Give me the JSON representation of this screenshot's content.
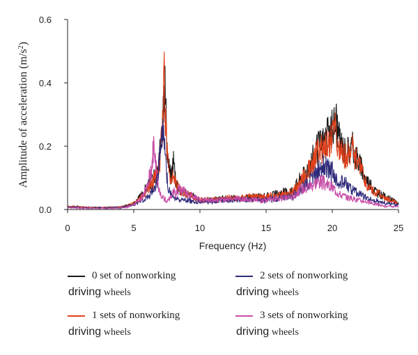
{
  "chart_data": {
    "type": "line",
    "xlabel": "Frequency (Hz)",
    "ylabel_main": "Amplitude of acceleration (m/s",
    "ylabel_sup": "2",
    "ylabel_end": ")",
    "xlim": [
      0,
      25
    ],
    "ylim": [
      0,
      0.6
    ],
    "xticks": [
      "0",
      "5",
      "10",
      "15",
      "20",
      "25"
    ],
    "yticks": [
      "0.0",
      "0.2",
      "0.4",
      "0.6"
    ],
    "grid": false,
    "legend_position": "bottom",
    "series": [
      {
        "name": "0 set of nonworking driving wheels",
        "color": "#1a1a1a",
        "x": [
          0,
          1,
          2,
          3,
          4,
          4.5,
          5,
          5.5,
          6,
          6.5,
          6.8,
          7,
          7.2,
          7.3,
          7.4,
          7.5,
          7.6,
          7.8,
          8,
          8.2,
          8.5,
          9,
          9.5,
          10,
          11,
          12,
          13,
          14,
          15,
          16,
          17,
          17.5,
          18,
          18.5,
          19,
          19.5,
          20,
          20.3,
          20.5,
          21,
          21.5,
          22,
          22.5,
          23,
          23.5,
          24,
          25
        ],
        "y": [
          0.01,
          0.008,
          0.006,
          0.006,
          0.008,
          0.012,
          0.02,
          0.04,
          0.07,
          0.1,
          0.12,
          0.18,
          0.3,
          0.45,
          0.35,
          0.22,
          0.15,
          0.1,
          0.16,
          0.09,
          0.06,
          0.05,
          0.04,
          0.03,
          0.03,
          0.035,
          0.035,
          0.04,
          0.04,
          0.05,
          0.06,
          0.09,
          0.12,
          0.16,
          0.2,
          0.22,
          0.25,
          0.285,
          0.22,
          0.18,
          0.2,
          0.15,
          0.1,
          0.07,
          0.05,
          0.04,
          0.02
        ]
      },
      {
        "name": "1 sets of nonworking driving wheels",
        "color": "#e0401a",
        "x": [
          0,
          1,
          2,
          3,
          4,
          4.5,
          5,
          5.5,
          6,
          6.5,
          6.8,
          7,
          7.2,
          7.3,
          7.4,
          7.5,
          7.6,
          7.8,
          8,
          8.2,
          8.5,
          9,
          9.5,
          10,
          11,
          12,
          13,
          14,
          15,
          16,
          17,
          17.5,
          18,
          18.5,
          19,
          19.5,
          20,
          20.3,
          20.5,
          21,
          21.5,
          22,
          22.5,
          23,
          23.5,
          24,
          25
        ],
        "y": [
          0.01,
          0.008,
          0.006,
          0.006,
          0.008,
          0.012,
          0.02,
          0.035,
          0.06,
          0.09,
          0.11,
          0.16,
          0.28,
          0.42,
          0.3,
          0.2,
          0.13,
          0.09,
          0.12,
          0.08,
          0.06,
          0.05,
          0.04,
          0.03,
          0.03,
          0.035,
          0.035,
          0.04,
          0.04,
          0.045,
          0.055,
          0.08,
          0.11,
          0.15,
          0.19,
          0.2,
          0.23,
          0.26,
          0.2,
          0.17,
          0.19,
          0.14,
          0.09,
          0.06,
          0.05,
          0.035,
          0.02
        ]
      },
      {
        "name": "2 sets of nonworking driving wheels",
        "color": "#2e2a7a",
        "x": [
          0,
          1,
          2,
          3,
          4,
          4.5,
          5,
          5.5,
          6,
          6.5,
          6.8,
          7,
          7.2,
          7.3,
          7.4,
          7.5,
          7.6,
          7.8,
          8,
          8.2,
          8.5,
          9,
          9.5,
          10,
          11,
          12,
          13,
          14,
          15,
          16,
          17,
          17.5,
          18,
          18.5,
          19,
          19.5,
          20,
          20.3,
          20.5,
          21,
          21.5,
          22,
          22.5,
          23,
          23.5,
          24,
          25
        ],
        "y": [
          0.008,
          0.006,
          0.005,
          0.005,
          0.006,
          0.01,
          0.015,
          0.025,
          0.04,
          0.06,
          0.1,
          0.2,
          0.24,
          0.2,
          0.15,
          0.1,
          0.07,
          0.05,
          0.04,
          0.035,
          0.03,
          0.03,
          0.025,
          0.025,
          0.025,
          0.03,
          0.03,
          0.03,
          0.03,
          0.035,
          0.04,
          0.06,
          0.08,
          0.1,
          0.13,
          0.14,
          0.12,
          0.1,
          0.09,
          0.08,
          0.06,
          0.05,
          0.04,
          0.03,
          0.025,
          0.02,
          0.015
        ]
      },
      {
        "name": "3 sets of nonworking driving wheels",
        "color": "#c64ca6",
        "x": [
          0,
          1,
          2,
          3,
          4,
          4.5,
          5,
          5.5,
          6,
          6.3,
          6.5,
          6.6,
          6.7,
          6.8,
          7,
          7.2,
          7.4,
          7.6,
          7.8,
          8,
          8.2,
          8.5,
          9,
          9.5,
          10,
          11,
          12,
          13,
          14,
          15,
          16,
          17,
          17.5,
          18,
          18.5,
          19,
          19.5,
          20,
          20.3,
          20.5,
          21,
          21.5,
          22,
          22.5,
          23,
          23.5,
          24,
          25
        ],
        "y": [
          0.006,
          0.005,
          0.004,
          0.004,
          0.005,
          0.008,
          0.015,
          0.03,
          0.07,
          0.12,
          0.19,
          0.16,
          0.12,
          0.08,
          0.05,
          0.04,
          0.03,
          0.03,
          0.04,
          0.06,
          0.05,
          0.07,
          0.05,
          0.04,
          0.03,
          0.03,
          0.03,
          0.035,
          0.03,
          0.03,
          0.035,
          0.04,
          0.06,
          0.07,
          0.08,
          0.09,
          0.08,
          0.07,
          0.06,
          0.05,
          0.04,
          0.035,
          0.03,
          0.025,
          0.02,
          0.015,
          0.01,
          0.008
        ]
      }
    ]
  },
  "legend": [
    {
      "line1": "0 set of nonworking",
      "line2_big": "driving",
      "line2_small": "wheels",
      "color": "#1a1a1a"
    },
    {
      "line1": "2 sets of nonworking",
      "line2_big": "driving",
      "line2_small": "wheels",
      "color": "#2e2a7a"
    },
    {
      "line1": "1 sets of nonworking",
      "line2_big": "driving",
      "line2_small": "wheels",
      "color": "#e0401a"
    },
    {
      "line1": "3 sets of nonworking",
      "line2_big": "driving",
      "line2_small": "wheels",
      "color": "#c64ca6"
    }
  ]
}
